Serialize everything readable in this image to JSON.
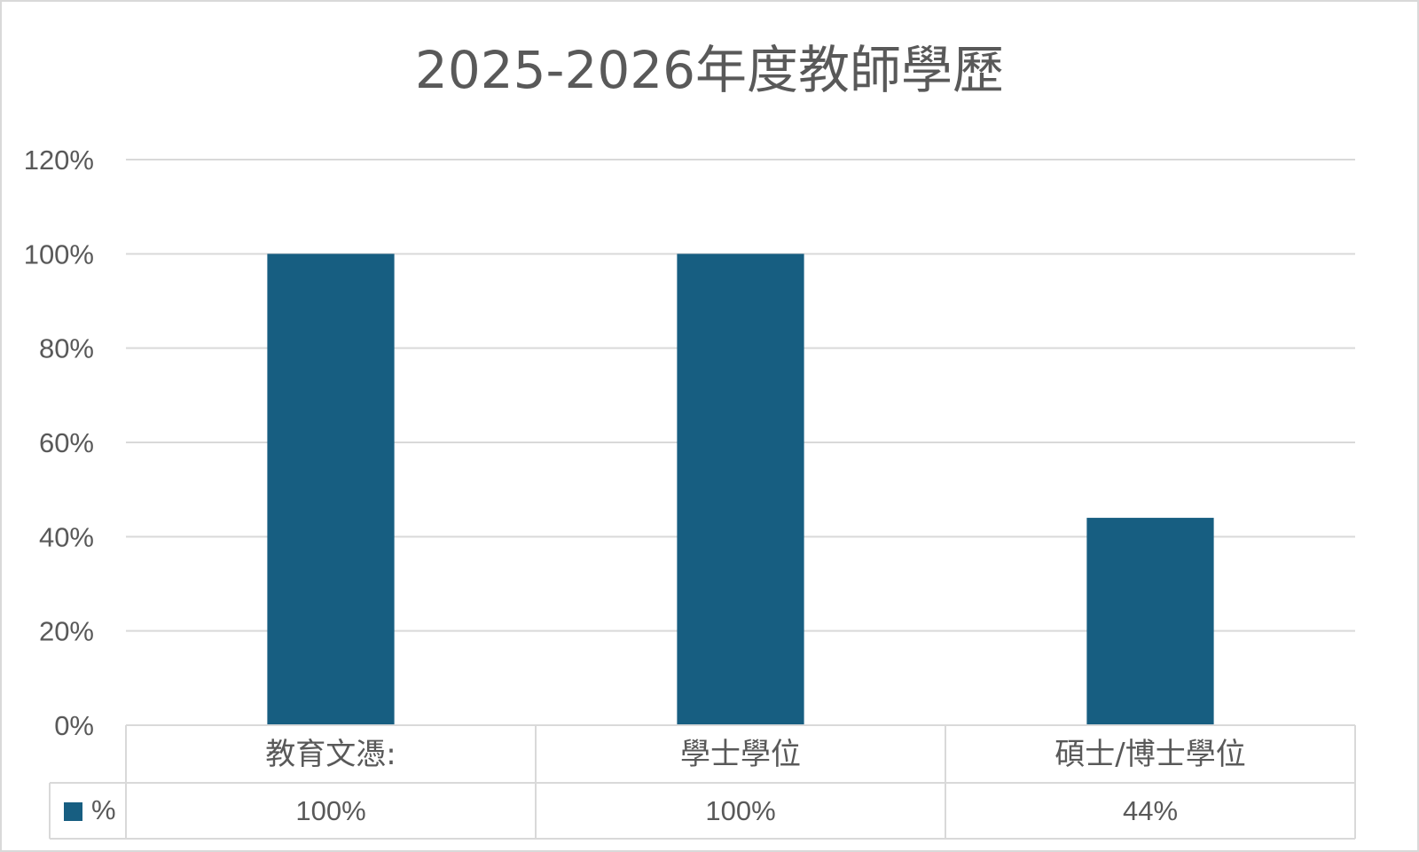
{
  "chart_data": {
    "type": "bar",
    "title": "2025-2026年度教師學歷",
    "categories": [
      "教育文憑:",
      "學士學位",
      "碩士/博士學位"
    ],
    "series": [
      {
        "name": "%",
        "values": [
          100,
          100,
          44
        ],
        "value_labels": [
          "100%",
          "100%",
          "44%"
        ],
        "color": "#175e81"
      }
    ],
    "ylim": [
      0,
      120
    ],
    "yticks": [
      0,
      20,
      40,
      60,
      80,
      100,
      120
    ],
    "ytick_labels": [
      "0%",
      "20%",
      "40%",
      "60%",
      "80%",
      "100%",
      "120%"
    ],
    "grid": true,
    "legend": "data-table",
    "colors": {
      "grid": "#d9d9d9",
      "text": "#595959",
      "frame": "#d9d9d9"
    }
  }
}
